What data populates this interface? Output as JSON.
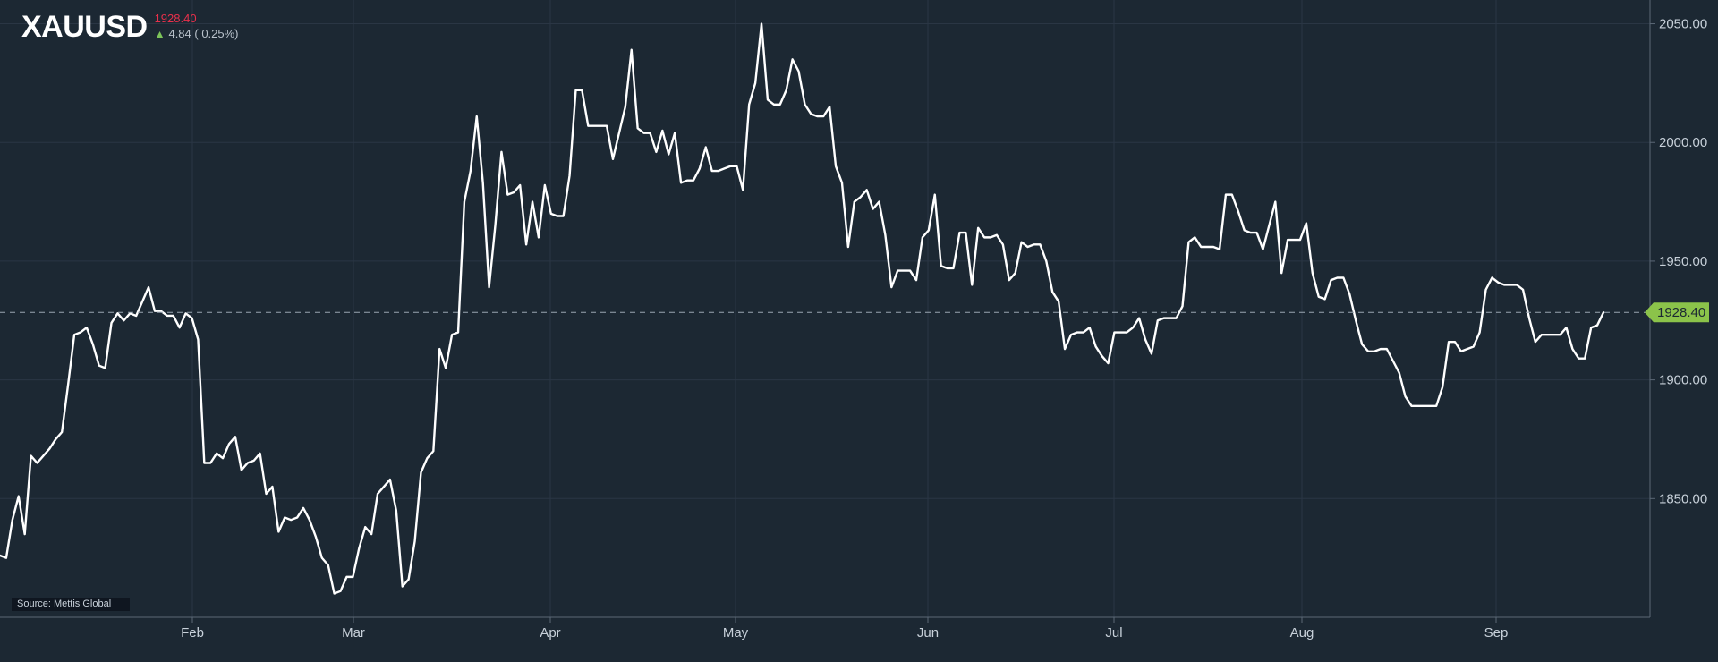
{
  "header": {
    "symbol": "XAUUSD",
    "last_price": "1928.40",
    "change_text": "4.84 ( 0.25%)"
  },
  "source": "Source: Mettis Global",
  "colors": {
    "background": "#1c2833",
    "grid": "#2a3644",
    "line": "#ffffff",
    "price_down": "#e8304b",
    "price_up_arrow": "#7cc35a",
    "axis_text": "#c8d1da",
    "current_label_bg": "#8bc34a"
  },
  "chart_data": {
    "type": "line",
    "title": "",
    "xlabel": "",
    "ylabel": "",
    "ylim": [
      1800,
      2060
    ],
    "y_ticks": [
      "1850.00",
      "1900.00",
      "1950.00",
      "2000.00",
      "2050.00"
    ],
    "x_ticks": [
      "Feb",
      "Mar",
      "Apr",
      "May",
      "Jun",
      "Jul",
      "Aug",
      "Sep"
    ],
    "current_value": 1928.4,
    "current_label": "1928.40",
    "series": [
      {
        "name": "",
        "values": [
          1826,
          1825,
          1841,
          1851,
          1835,
          1868,
          1865,
          1868,
          1871,
          1875,
          1878,
          1898,
          1919,
          1920,
          1922,
          1915,
          1906,
          1905,
          1924,
          1928,
          1925,
          1928,
          1927,
          1933,
          1939,
          1929,
          1929,
          1927,
          1927,
          1922,
          1928,
          1926,
          1917,
          1865,
          1865,
          1869,
          1867,
          1873,
          1876,
          1862,
          1865,
          1866,
          1869,
          1852,
          1855,
          1836,
          1842,
          1841,
          1842,
          1846,
          1841,
          1834,
          1825,
          1822,
          1810,
          1811,
          1817,
          1817,
          1829,
          1838,
          1835,
          1852,
          1855,
          1858,
          1845,
          1813,
          1816,
          1832,
          1861,
          1867,
          1870,
          1913,
          1905,
          1919,
          1920,
          1975,
          1988,
          2011,
          1983,
          1939,
          1965,
          1996,
          1978,
          1979,
          1982,
          1957,
          1975,
          1960,
          1982,
          1970,
          1969,
          1969,
          1986,
          2022,
          2022,
          2007,
          2007,
          2007,
          2007,
          1993,
          2004,
          2015,
          2039,
          2006,
          2004,
          2004,
          1996,
          2005,
          1995,
          2004,
          1983,
          1984,
          1984,
          1989,
          1998,
          1988,
          1988,
          1989,
          1990,
          1990,
          1980,
          2016,
          2025,
          2050,
          2018,
          2016,
          2016,
          2022,
          2035,
          2030,
          2016,
          2012,
          2011,
          2011,
          2015,
          1990,
          1983,
          1956,
          1975,
          1977,
          1980,
          1972,
          1975,
          1961,
          1939,
          1946,
          1946,
          1946,
          1942,
          1960,
          1963,
          1978,
          1948,
          1947,
          1947,
          1962,
          1962,
          1940,
          1964,
          1960,
          1960,
          1961,
          1957,
          1942,
          1945,
          1958,
          1956,
          1957,
          1957,
          1950,
          1937,
          1933,
          1913,
          1919,
          1920,
          1920,
          1922,
          1914,
          1910,
          1907,
          1920,
          1920,
          1920,
          1922,
          1926,
          1917,
          1911,
          1925,
          1926,
          1926,
          1926,
          1931,
          1958,
          1960,
          1956,
          1956,
          1956,
          1955,
          1978,
          1978,
          1971,
          1963,
          1962,
          1962,
          1955,
          1965,
          1975,
          1945,
          1959,
          1959,
          1959,
          1966,
          1945,
          1935,
          1934,
          1942,
          1943,
          1943,
          1936,
          1925,
          1915,
          1912,
          1912,
          1913,
          1913,
          1908,
          1903,
          1893,
          1889,
          1889,
          1889,
          1889,
          1889,
          1897,
          1916,
          1916,
          1912,
          1913,
          1914,
          1920,
          1938,
          1943,
          1941,
          1940,
          1940,
          1940,
          1938,
          1926,
          1916,
          1919,
          1919,
          1919,
          1919,
          1922,
          1913,
          1909,
          1909,
          1922,
          1923,
          1928.4
        ]
      }
    ]
  }
}
